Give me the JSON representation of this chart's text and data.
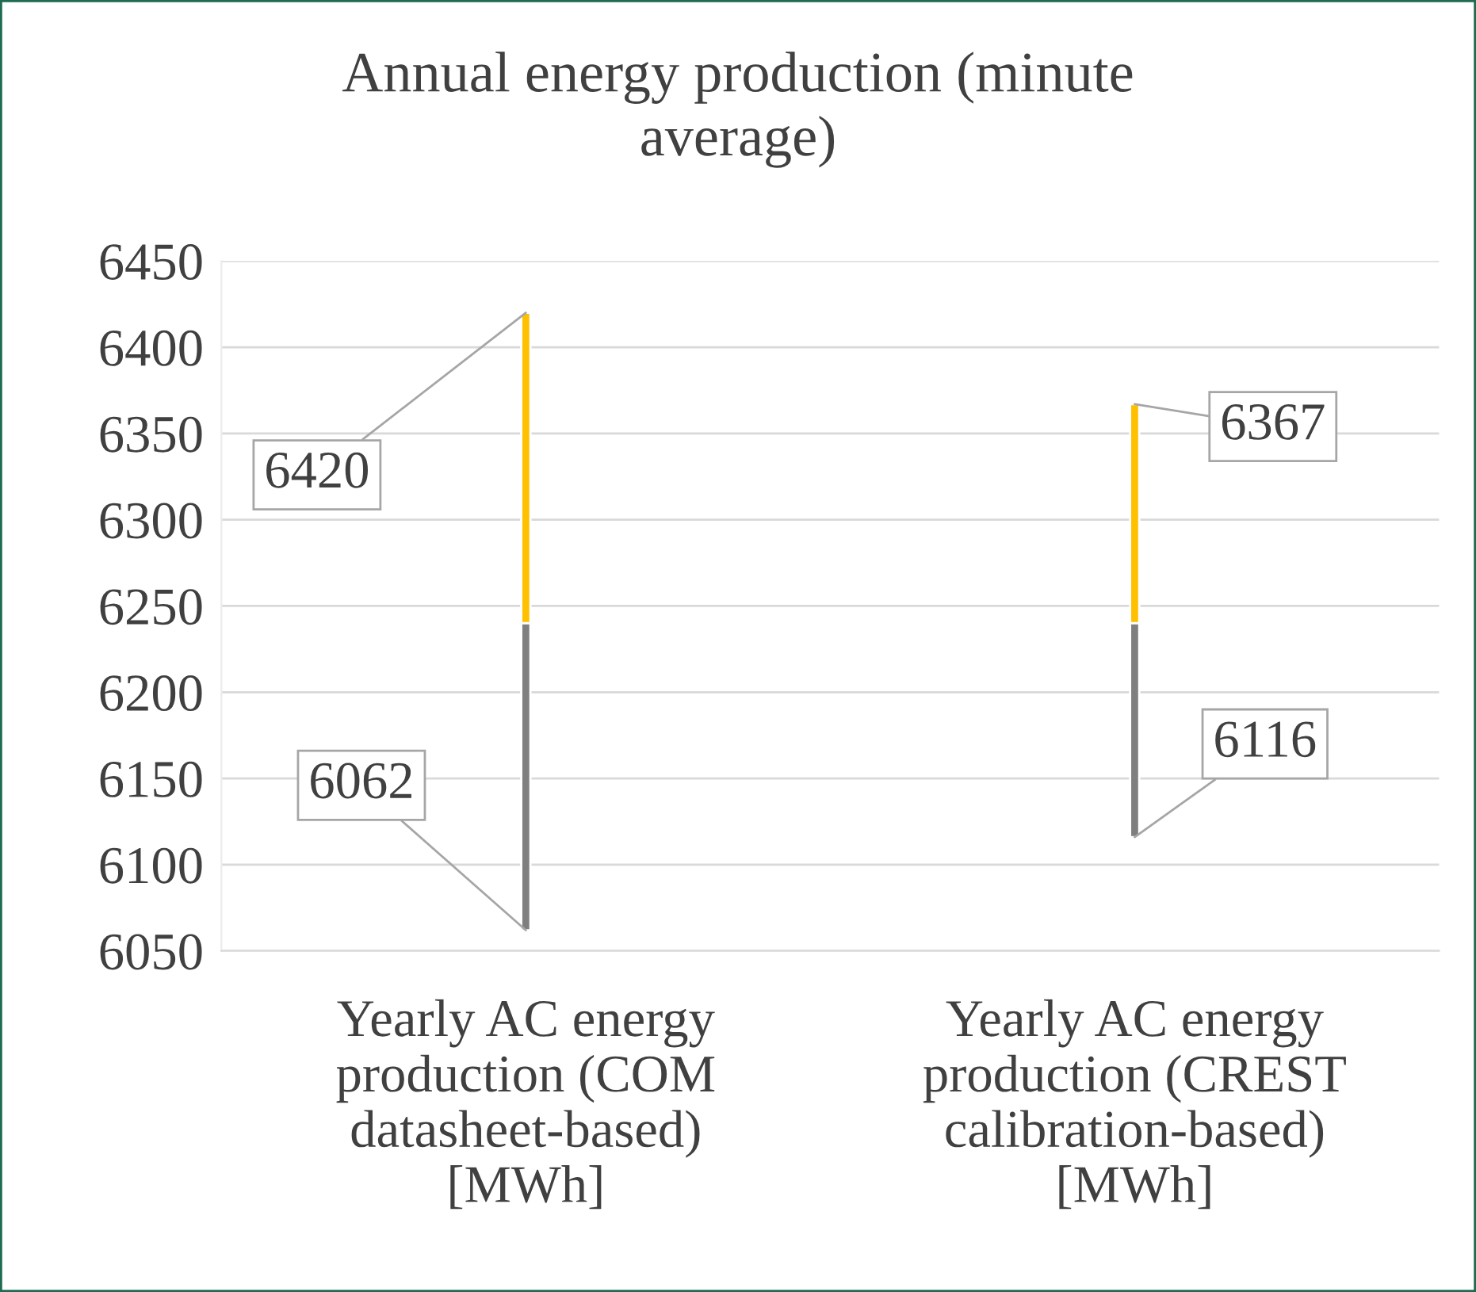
{
  "chart_data": {
    "type": "bar",
    "title": "Annual energy production (minute average)",
    "categories": [
      "Yearly AC energy production (COM datasheet-based) [MWh]",
      "Yearly AC energy production (CREST calibration-based) [MWh]"
    ],
    "series": [
      {
        "color": "#7f7f7f",
        "base": [
          6062,
          6116
        ],
        "values": [
          178,
          124
        ]
      },
      {
        "color": "#ffc000",
        "base": [
          6240,
          6240
        ],
        "values": [
          180,
          127
        ]
      }
    ],
    "annotations": [
      {
        "text": "6420",
        "x": "Yearly AC energy production (COM datasheet-based) [MWh]",
        "y": 6420
      },
      {
        "text": "6062",
        "x": "Yearly AC energy production (COM datasheet-based) [MWh]",
        "y": 6062
      },
      {
        "text": "6367",
        "x": "Yearly AC energy production (CREST calibration-based) [MWh]",
        "y": 6367
      },
      {
        "text": "6116",
        "x": "Yearly AC energy production (CREST calibration-based) [MWh]",
        "y": 6116
      }
    ],
    "ylim": [
      6050,
      6450
    ],
    "yticks": [
      6050,
      6100,
      6150,
      6200,
      6250,
      6300,
      6350,
      6400,
      6450
    ],
    "grid": "y",
    "legend": false
  }
}
